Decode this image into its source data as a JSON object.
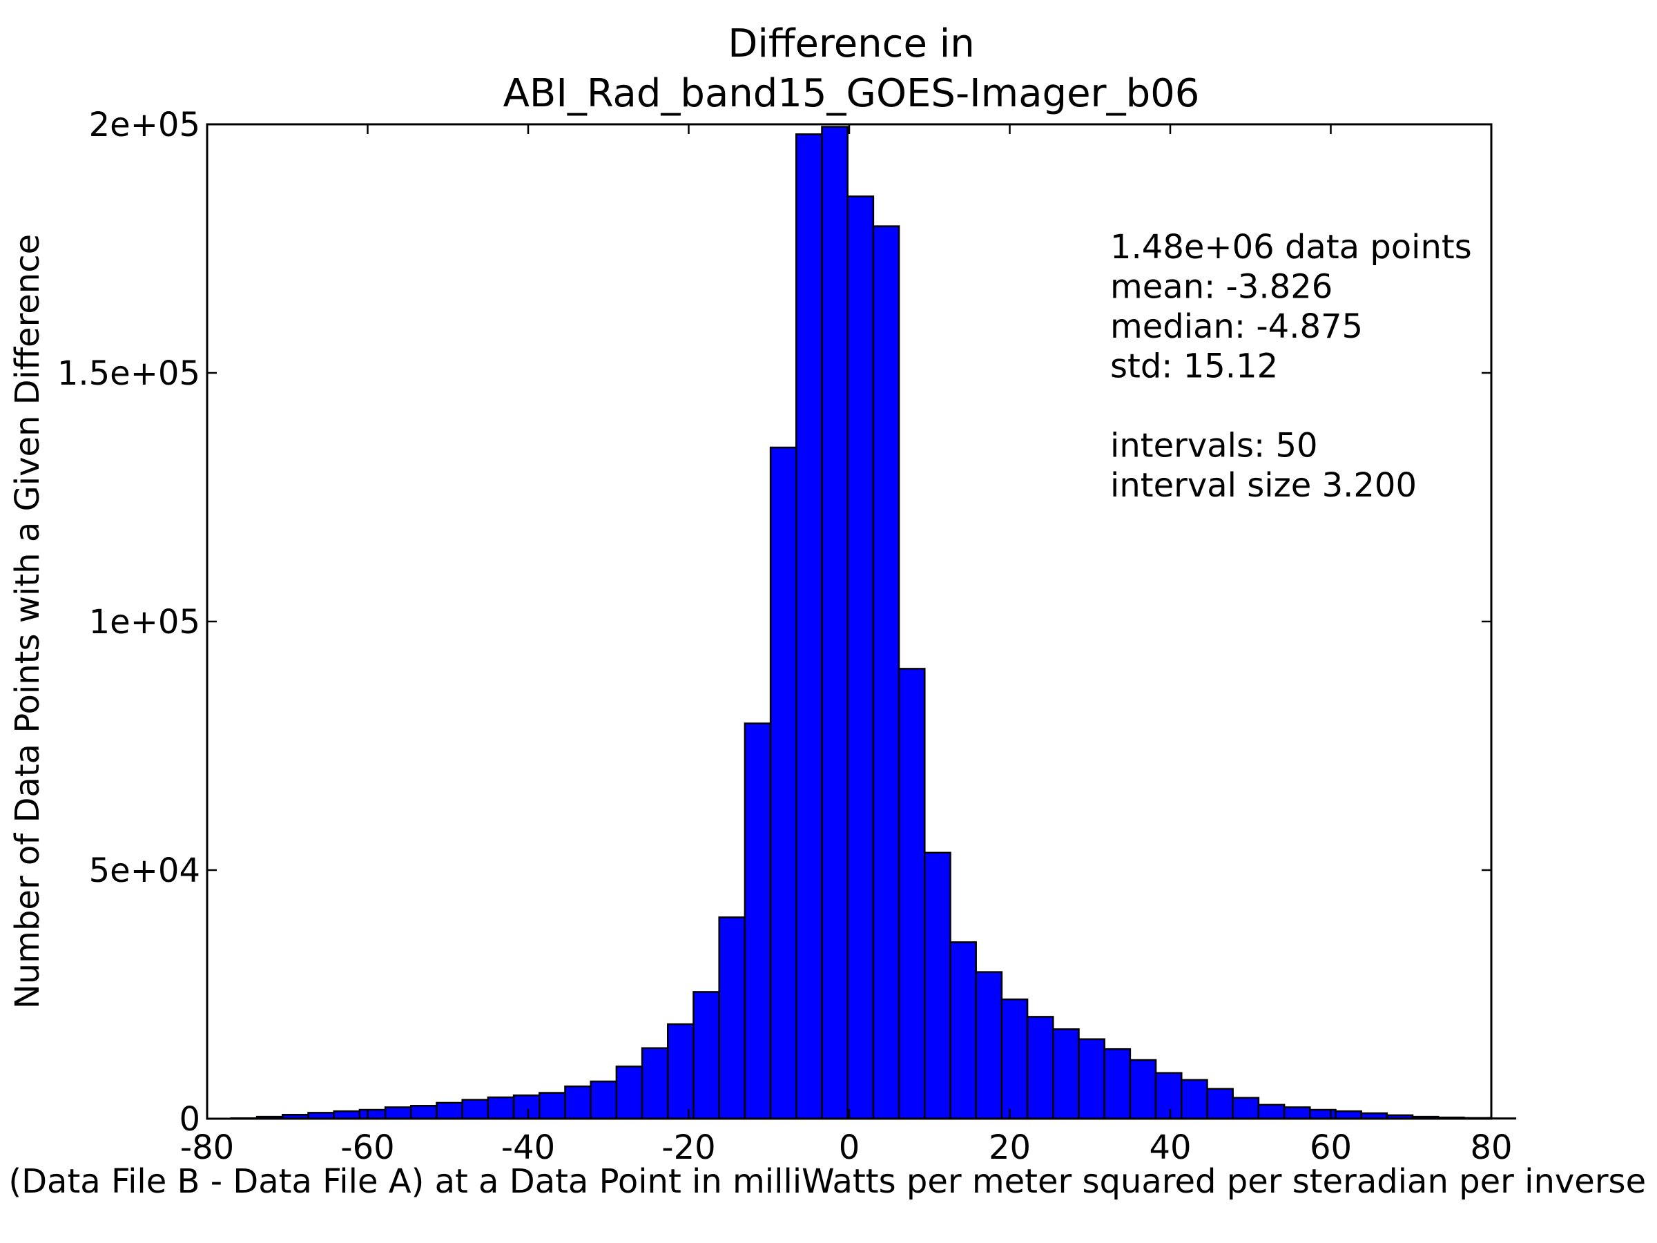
{
  "chart_data": {
    "type": "bar",
    "title_lines": [
      "Difference in",
      "ABI_Rad_band15_GOES-Imager_b06"
    ],
    "xlabel": "Value of (Data File B - Data File A) at a Data Point in milliWatts per meter squared per steradian per inverse centimeter",
    "ylabel": "Number of Data Points with a Given Difference",
    "xlim": [
      -80,
      80
    ],
    "ylim": [
      0,
      200000
    ],
    "xticks": [
      -80,
      -60,
      -40,
      -20,
      0,
      20,
      40,
      60,
      80
    ],
    "xtick_labels": [
      "-80",
      "-60",
      "-40",
      "-20",
      "0",
      "20",
      "40",
      "60",
      "80"
    ],
    "yticks": [
      0,
      50000,
      100000,
      150000,
      200000
    ],
    "ytick_labels": [
      "0",
      "5e+04",
      "1e+05",
      "1.5e+05",
      "2e+05"
    ],
    "bin_start": -77.0,
    "bin_width": 3.2,
    "values": [
      100,
      400,
      800,
      1200,
      1500,
      1800,
      2300,
      2600,
      3200,
      3800,
      4300,
      4700,
      5200,
      6500,
      7500,
      10500,
      14200,
      19000,
      25500,
      40500,
      79500,
      135000,
      198000,
      199500,
      185500,
      179500,
      90500,
      53500,
      35500,
      29500,
      24000,
      20500,
      18000,
      16000,
      14000,
      11800,
      9200,
      7800,
      6000,
      4200,
      2800,
      2300,
      1800,
      1500,
      1100,
      700,
      400,
      250,
      150,
      80
    ],
    "bar_color": "#0000ff",
    "edge_color": "#000000",
    "grid": false,
    "legend": "none",
    "annotations": [
      "1.48e+06 data points",
      "mean: -3.826",
      "median: -4.875",
      "std: 15.12",
      "",
      "intervals: 50",
      "interval size 3.200"
    ]
  }
}
